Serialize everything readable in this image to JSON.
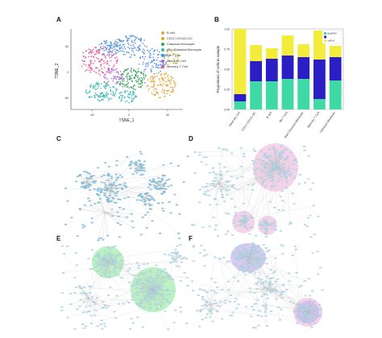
{
  "panels": {
    "a": "A",
    "b": "B",
    "c": "C",
    "d": "D",
    "e": "E",
    "f": "F"
  },
  "tsne": {
    "xlabel": "TSNE_1",
    "ylabel": "TSNE_2",
    "x_ticks": [
      "-50",
      "0",
      "50"
    ],
    "y_ticks": [
      "50",
      "0",
      "-50"
    ],
    "legend": [
      {
        "label": "B cell",
        "color": "#e8a43a"
      },
      {
        "label": "CD1C-CD141-DC",
        "color": "#c9b324"
      },
      {
        "label": "Classical Monocyte",
        "color": "#3aa05b"
      },
      {
        "label": "Non-Classical Monocyte",
        "color": "#36b8b0"
      },
      {
        "label": "NK T Cell",
        "color": "#4f8ed8"
      },
      {
        "label": "Dend-ific Cell",
        "color": "#b06bd8"
      },
      {
        "label": "Memory T Cell",
        "color": "#e0559a"
      }
    ]
  },
  "chart_data": {
    "type": "bar",
    "stacked": true,
    "ylabel": "Proportions of cells in sample",
    "ylim": [
      0,
      1
    ],
    "categories": [
      "Dend-ific Cell",
      "CD1C-CD141-DC",
      "B cell",
      "NK T Cell",
      "Non-Classical Monocyte",
      "Memory T Cell",
      "Classical Monocyte"
    ],
    "series": [
      {
        "name": "control",
        "color": "#3fd9a6",
        "values": [
          0.1,
          0.35,
          0.35,
          0.38,
          0.38,
          0.13,
          0.36
        ]
      },
      {
        "name": "",
        "color": "#2a1ec4",
        "values": [
          0.09,
          0.25,
          0.28,
          0.29,
          0.27,
          0.49,
          0.29
        ]
      },
      {
        "name": "",
        "color": "#f4ec3a",
        "values": [
          0.81,
          0.2,
          0.13,
          0.25,
          0.16,
          0.36,
          0.14
        ]
      }
    ],
    "legend_labels": [
      "BulkRNA",
      "",
      "scRNA"
    ],
    "bar_totals": [
      1.0,
      0.8,
      0.76,
      0.92,
      0.81,
      0.98,
      0.79
    ]
  },
  "networks": {
    "c_color": "#8ac6e3",
    "d_color": "#f1c4e4",
    "e_color": "#a6ecb0",
    "f_color": "#c9b9f0",
    "f_pink": "#f1c4e4"
  }
}
